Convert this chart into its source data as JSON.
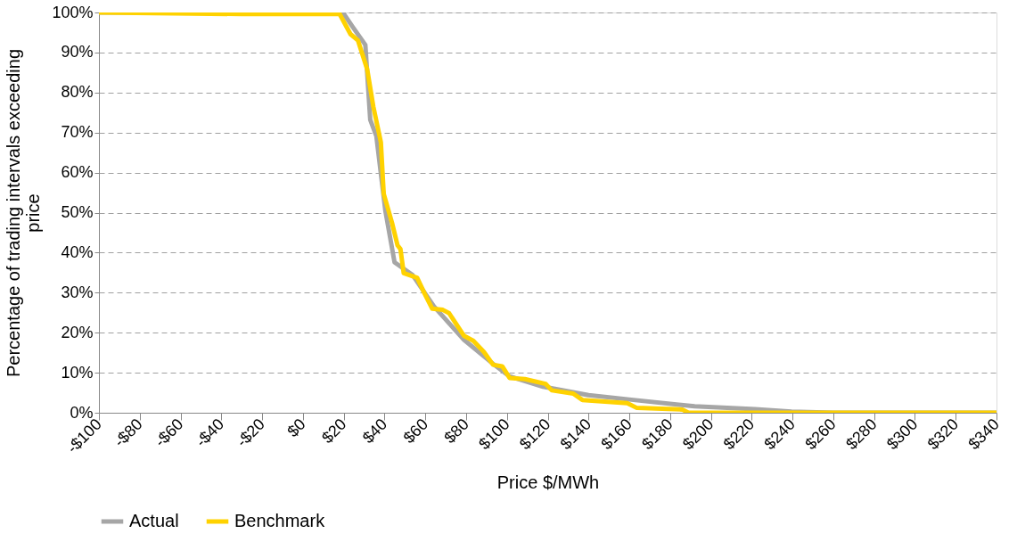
{
  "chart_data": {
    "type": "line",
    "xlabel": "Price $/MWh",
    "ylabel": "Percentage of trading intervals exceeding price",
    "xlim": [
      -100,
      340
    ],
    "ylim": [
      0,
      100
    ],
    "xticks": [
      {
        "value": -100,
        "label": "-$100"
      },
      {
        "value": -80,
        "label": "-$80"
      },
      {
        "value": -60,
        "label": "-$60"
      },
      {
        "value": -40,
        "label": "-$40"
      },
      {
        "value": -20,
        "label": "-$20"
      },
      {
        "value": 0,
        "label": "$0"
      },
      {
        "value": 20,
        "label": "$20"
      },
      {
        "value": 40,
        "label": "$40"
      },
      {
        "value": 60,
        "label": "$60"
      },
      {
        "value": 80,
        "label": "$80"
      },
      {
        "value": 100,
        "label": "$100"
      },
      {
        "value": 120,
        "label": "$120"
      },
      {
        "value": 140,
        "label": "$140"
      },
      {
        "value": 160,
        "label": "$160"
      },
      {
        "value": 180,
        "label": "$180"
      },
      {
        "value": 200,
        "label": "$200"
      },
      {
        "value": 220,
        "label": "$220"
      },
      {
        "value": 240,
        "label": "$240"
      },
      {
        "value": 260,
        "label": "$260"
      },
      {
        "value": 280,
        "label": "$280"
      },
      {
        "value": 300,
        "label": "$300"
      },
      {
        "value": 320,
        "label": "$320"
      },
      {
        "value": 340,
        "label": "$340"
      }
    ],
    "yticks": [
      {
        "value": 0,
        "label": "0%"
      },
      {
        "value": 10,
        "label": "10%"
      },
      {
        "value": 20,
        "label": "20%"
      },
      {
        "value": 30,
        "label": "30%"
      },
      {
        "value": 40,
        "label": "40%"
      },
      {
        "value": 50,
        "label": "50%"
      },
      {
        "value": 60,
        "label": "60%"
      },
      {
        "value": 70,
        "label": "70%"
      },
      {
        "value": 80,
        "label": "80%"
      },
      {
        "value": 90,
        "label": "90%"
      },
      {
        "value": 100,
        "label": "100%"
      }
    ],
    "grid": "y",
    "legend": "bottom",
    "line_style": "solid",
    "marker": "none",
    "series": [
      {
        "name": "Actual",
        "color": "#a6a6a6",
        "x": [
          -100,
          19.6,
          24,
          30.6,
          33,
          36,
          40.4,
          44.9,
          53.8,
          64.2,
          79,
          94,
          101.3,
          117.7,
          140,
          162,
          192,
          221.7,
          239.5,
          260,
          340
        ],
        "values": [
          100,
          100,
          96.7,
          91.9,
          73.2,
          69.1,
          50.5,
          37.6,
          34.4,
          26.6,
          18.2,
          11.9,
          9.1,
          6.5,
          4.4,
          3.2,
          1.6,
          0.9,
          0.3,
          0,
          0
        ]
      },
      {
        "name": "Benchmark",
        "color": "#ffd200",
        "x": [
          -100,
          -30,
          18,
          23.3,
          27,
          31.5,
          34.5,
          38.2,
          39.6,
          43.7,
          46.4,
          47.8,
          49.4,
          56,
          59.7,
          63.4,
          68.6,
          71.6,
          79,
          83.5,
          88.7,
          93.2,
          97.7,
          101.3,
          108.8,
          119,
          122,
          132.5,
          137,
          159,
          163.7,
          186,
          189,
          340
        ],
        "values": [
          100,
          99.6,
          99.6,
          94.6,
          93,
          85.8,
          76.5,
          67.6,
          54.7,
          47.4,
          41.8,
          40.9,
          34.9,
          33.7,
          29.7,
          26,
          25.7,
          24.9,
          19.2,
          18,
          15.2,
          12,
          11.6,
          8.7,
          8.4,
          7.2,
          5.6,
          4.8,
          3.2,
          2.4,
          1.2,
          0.8,
          0,
          0
        ]
      }
    ]
  }
}
